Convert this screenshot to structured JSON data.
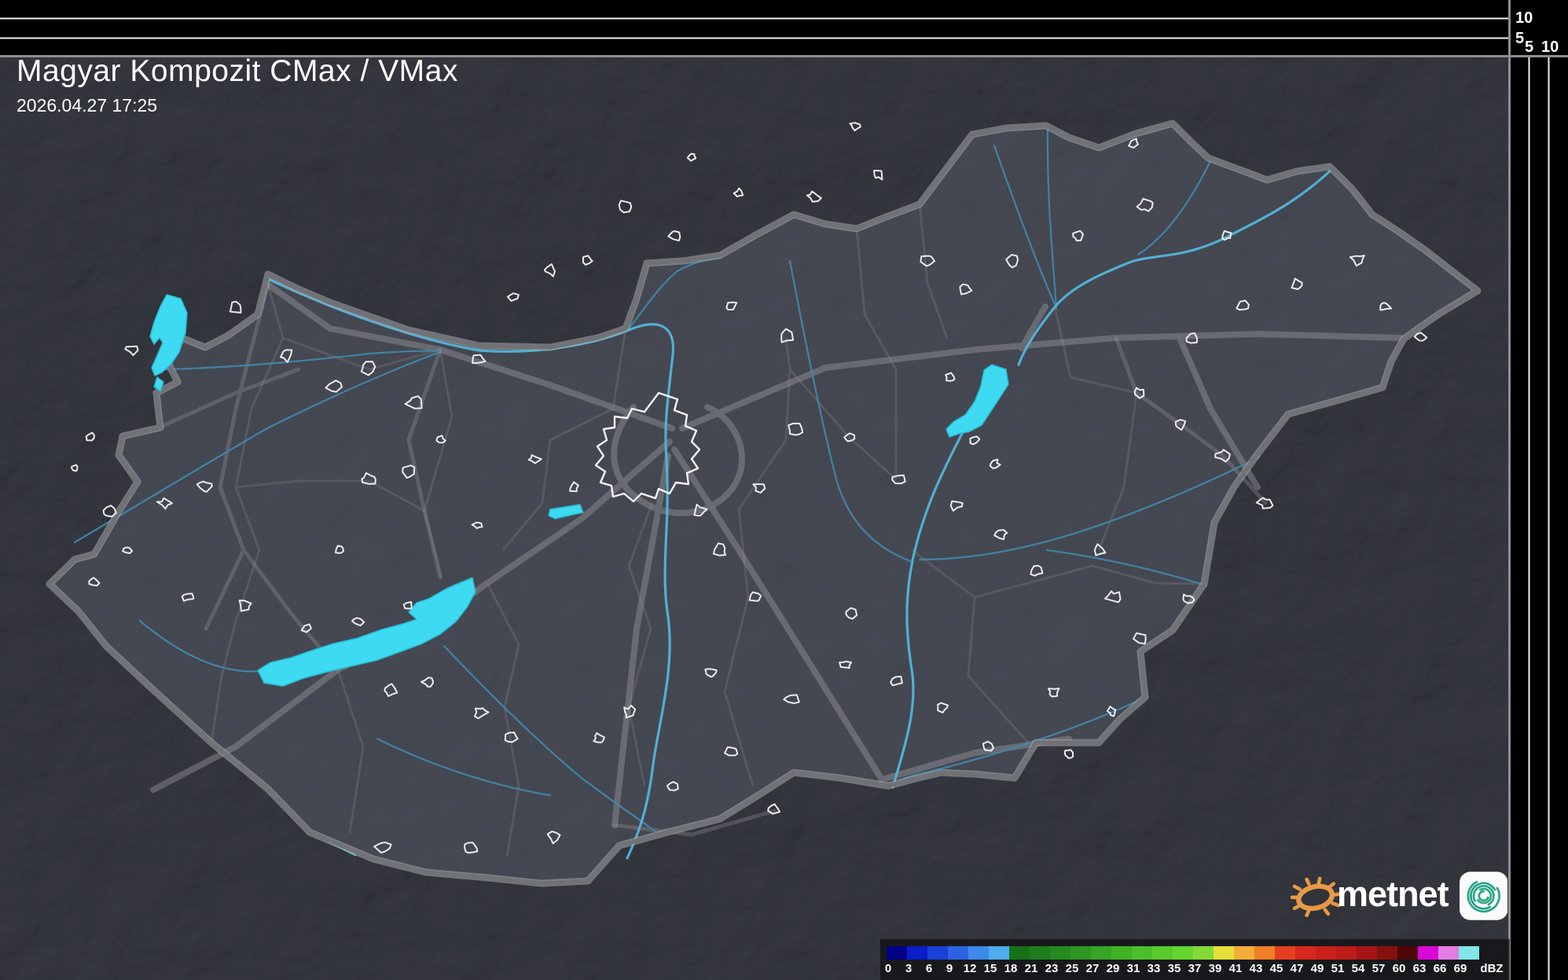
{
  "header": {
    "title": "Magyar Kompozit CMax / VMax",
    "timestamp": "2026.04.27 17:25"
  },
  "side_scales": {
    "top_labels": [
      "10",
      "5"
    ],
    "right_labels": [
      "5",
      "10"
    ]
  },
  "legend": {
    "unit": "dBZ",
    "entries": [
      {
        "value": "0",
        "color": "#020287"
      },
      {
        "value": "3",
        "color": "#0a1dc8"
      },
      {
        "value": "6",
        "color": "#1b40d8"
      },
      {
        "value": "9",
        "color": "#2c63e2"
      },
      {
        "value": "12",
        "color": "#3e89ea"
      },
      {
        "value": "15",
        "color": "#4facf0"
      },
      {
        "value": "18",
        "color": "#187119"
      },
      {
        "value": "21",
        "color": "#1f7d1d"
      },
      {
        "value": "23",
        "color": "#268a20"
      },
      {
        "value": "25",
        "color": "#2e9722"
      },
      {
        "value": "27",
        "color": "#37a425"
      },
      {
        "value": "29",
        "color": "#41b128"
      },
      {
        "value": "31",
        "color": "#4cbe2b"
      },
      {
        "value": "33",
        "color": "#58ca2e"
      },
      {
        "value": "35",
        "color": "#65d631"
      },
      {
        "value": "37",
        "color": "#84d936"
      },
      {
        "value": "39",
        "color": "#e6df3a"
      },
      {
        "value": "41",
        "color": "#f2ae38"
      },
      {
        "value": "43",
        "color": "#f07f28"
      },
      {
        "value": "45",
        "color": "#e33f20"
      },
      {
        "value": "47",
        "color": "#d8271c"
      },
      {
        "value": "49",
        "color": "#cc211a"
      },
      {
        "value": "51",
        "color": "#bc1b18"
      },
      {
        "value": "54",
        "color": "#a51515"
      },
      {
        "value": "57",
        "color": "#871010"
      },
      {
        "value": "60",
        "color": "#4d0707"
      },
      {
        "value": "63",
        "color": "#d908d9"
      },
      {
        "value": "66",
        "color": "#e47ce4"
      },
      {
        "value": "69",
        "color": "#7fe5e5"
      }
    ]
  },
  "logo": {
    "brand": "metnet"
  },
  "colors": {
    "lake": "#3edaf2",
    "river_minor": "#4188a8",
    "river_major": "#54b4d8",
    "road": "#9b9ca0",
    "country_border": "#717276",
    "county_border": "#5a5b61",
    "town_outline": "#f4f4f4",
    "sun_orange": "#e89a45",
    "icon_teal": "#2aa584"
  }
}
